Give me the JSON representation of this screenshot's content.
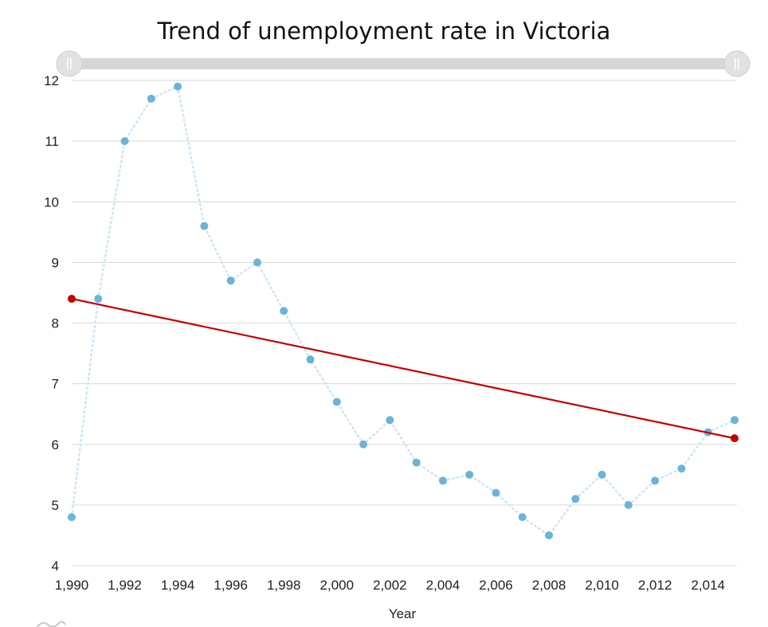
{
  "chart_data": {
    "type": "line",
    "title": "Trend of unemployment rate in Victoria",
    "xlabel": "Year",
    "ylabel": "",
    "xlim": [
      1990,
      2015
    ],
    "ylim": [
      4,
      12
    ],
    "x_ticks": [
      1990,
      1992,
      1994,
      1996,
      1998,
      2000,
      2002,
      2004,
      2006,
      2008,
      2010,
      2012,
      2014
    ],
    "x_tick_labels": [
      "1,990",
      "1,992",
      "1,994",
      "1,996",
      "1,998",
      "2,000",
      "2,002",
      "2,004",
      "2,006",
      "2,008",
      "2,010",
      "2,012",
      "2,014"
    ],
    "y_ticks": [
      4,
      5,
      6,
      7,
      8,
      9,
      10,
      11,
      12
    ],
    "grid": "horizontal",
    "series": [
      {
        "style": "dotted line with markers",
        "color": "#6ab4d8",
        "x": [
          1990,
          1991,
          1992,
          1993,
          1994,
          1995,
          1996,
          1997,
          1998,
          1999,
          2000,
          2001,
          2002,
          2003,
          2004,
          2005,
          2006,
          2007,
          2008,
          2009,
          2010,
          2011,
          2012,
          2013,
          2014,
          2015
        ],
        "values": [
          4.8,
          8.4,
          11.0,
          11.7,
          11.9,
          9.6,
          8.7,
          9.0,
          8.2,
          7.4,
          6.7,
          6.0,
          6.4,
          5.7,
          5.4,
          5.5,
          5.2,
          4.8,
          4.5,
          5.1,
          5.5,
          5.0,
          5.4,
          5.6,
          6.2,
          6.4
        ]
      },
      {
        "style": "trend line",
        "color": "#c00000",
        "x": [
          1990,
          2015
        ],
        "values": [
          8.4,
          6.1
        ]
      }
    ]
  }
}
